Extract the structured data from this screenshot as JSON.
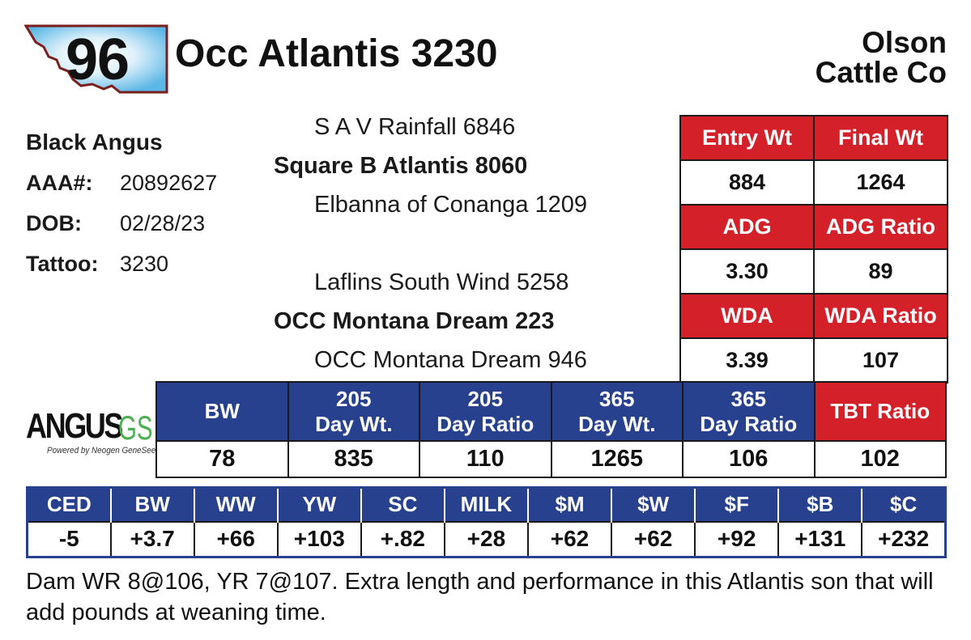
{
  "header": {
    "lot_number": "96",
    "animal_name": "Occ Atlantis 3230",
    "consignor_line1": "Olson",
    "consignor_line2": "Cattle Co",
    "badge_shape": "montana-state-outline",
    "badge_border_color": "#7a1e1e"
  },
  "info": {
    "breed": "Black Angus",
    "aaa_label": "AAA#:",
    "aaa_value": "20892627",
    "dob_label": "DOB:",
    "dob_value": "02/28/23",
    "tattoo_label": "Tattoo:",
    "tattoo_value": "3230"
  },
  "pedigree": {
    "sire_sire": "S A V Rainfall 6846",
    "sire": "Square B Atlantis 8060",
    "sire_dam": "Elbanna of Conanga 1209",
    "dam_sire": "Laflins South Wind 5258",
    "dam": "OCC Montana Dream 223",
    "dam_dam": "OCC Montana Dream 946"
  },
  "weights": {
    "entry_wt_label": "Entry Wt",
    "entry_wt": "884",
    "final_wt_label": "Final Wt",
    "final_wt": "1264",
    "adg_label": "ADG",
    "adg": "3.30",
    "adg_ratio_label": "ADG Ratio",
    "adg_ratio": "89",
    "wda_label": "WDA",
    "wda": "3.39",
    "wda_ratio_label": "WDA Ratio",
    "wda_ratio": "107"
  },
  "performance": {
    "headers": [
      {
        "line1": "BW",
        "line2": ""
      },
      {
        "line1": "205",
        "line2": "Day Wt."
      },
      {
        "line1": "205",
        "line2": "Day Ratio"
      },
      {
        "line1": "365",
        "line2": "Day Wt."
      },
      {
        "line1": "365",
        "line2": "Day Ratio"
      },
      {
        "line1": "TBT Ratio",
        "line2": ""
      }
    ],
    "values": [
      "78",
      "835",
      "110",
      "1265",
      "106",
      "102"
    ]
  },
  "epds": {
    "headers": [
      "CED",
      "BW",
      "WW",
      "YW",
      "SC",
      "MILK",
      "$M",
      "$W",
      "$F",
      "$B",
      "$C"
    ],
    "values": [
      "-5",
      "+3.7",
      "+66",
      "+103",
      "+.82",
      "+28",
      "+62",
      "+62",
      "+92",
      "+131",
      "+232"
    ]
  },
  "logo": {
    "word": "ANGUS",
    "suffix": "GS",
    "tagline": "Powered by Neogen GeneSeek"
  },
  "comments": "Dam WR 8@106, YR 7@107. Extra length and performance in this Atlantis son that will add pounds at weaning time.",
  "colors": {
    "red": "#d32029",
    "blue": "#27418e",
    "logo_green": "#4caf50"
  }
}
